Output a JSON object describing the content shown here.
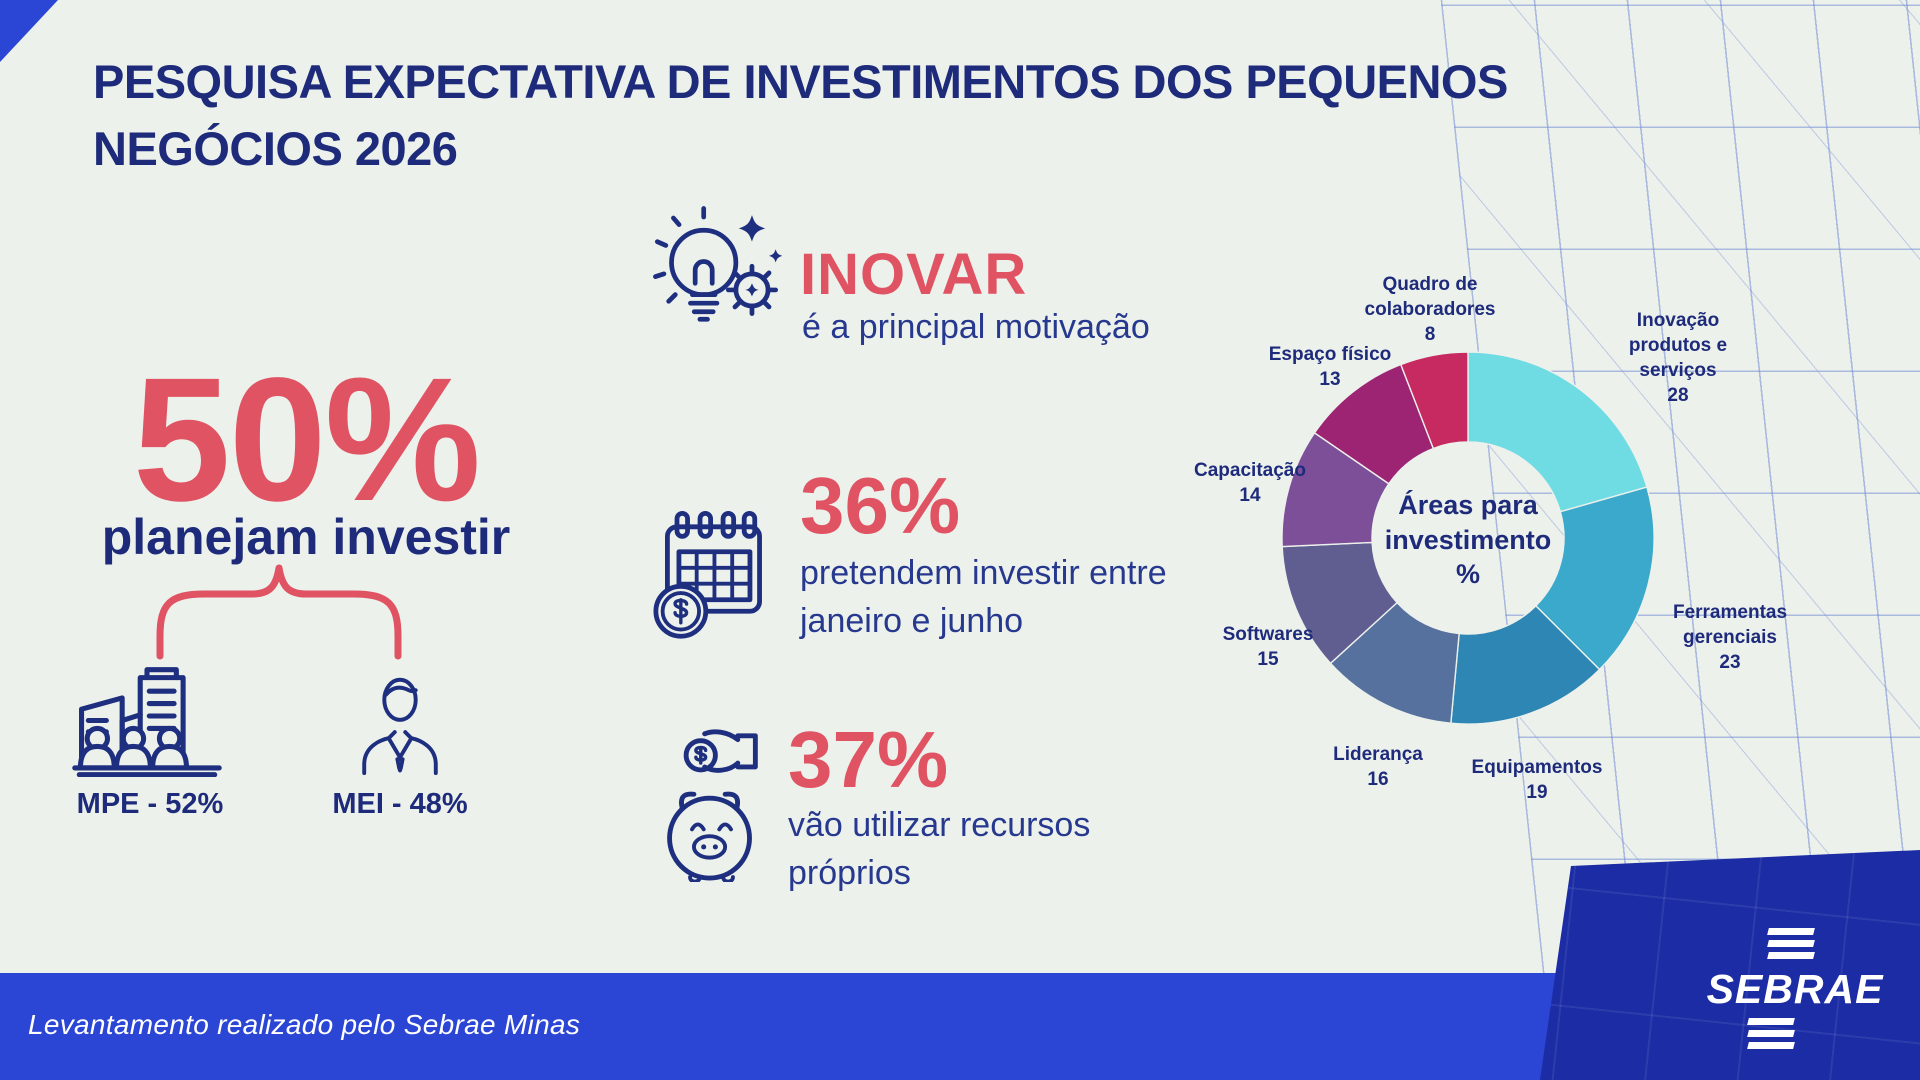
{
  "title_lines": [
    "PESQUISA EXPECTATIVA DE INVESTIMENTOS DOS PEQUENOS",
    "NEGÓCIOS 2026"
  ],
  "colors": {
    "background": "#EDF1EC",
    "navy": "#1E2B7B",
    "body_navy": "#27388F",
    "red": "#E05363",
    "footer_blue": "#2B45D4",
    "panel_blue": "#1B2CA4",
    "grid_line": "#7894D7"
  },
  "plan": {
    "percent": "50%",
    "label": "planejam investir",
    "split": [
      {
        "icon": "buildings-people-icon",
        "label": "MPE - 52%"
      },
      {
        "icon": "businessman-icon",
        "label": "MEI - 48%"
      }
    ]
  },
  "highlights": [
    {
      "icon": "innovation-lightbulb-gear-icon",
      "headline": "INOVAR",
      "lines": [
        "é a principal motivação"
      ]
    },
    {
      "icon": "calendar-money-icon",
      "headline": "36%",
      "lines": [
        "pretendem investir entre",
        "janeiro e junho"
      ]
    },
    {
      "icon": "piggy-bank-savings-icon",
      "headline": "37%",
      "lines": [
        "vão utilizar recursos",
        "próprios"
      ]
    }
  ],
  "chart_data": {
    "type": "pie",
    "variant": "donut",
    "title": "Áreas para investimento %",
    "center_label_lines": [
      "Áreas para",
      "investimento",
      "%"
    ],
    "unit": "%",
    "total": 136,
    "legend_position": "around",
    "segments": [
      {
        "id": "inovacao-produtos-servicos",
        "label": "Inovação produtos e serviços",
        "label_lines": [
          "Inovação",
          "produtos e",
          "serviços"
        ],
        "value": 28,
        "color": "#6FDBE3"
      },
      {
        "id": "ferramentas-gerenciais",
        "label": "Ferramentas gerenciais",
        "label_lines": [
          "Ferramentas gerenciais"
        ],
        "value": 23,
        "color": "#3AA9CC"
      },
      {
        "id": "equipamentos",
        "label": "Equipamentos",
        "label_lines": [
          "Equipamentos"
        ],
        "value": 19,
        "color": "#2E86B5"
      },
      {
        "id": "lideranca",
        "label": "Liderança",
        "label_lines": [
          "Liderança"
        ],
        "value": 16,
        "color": "#56719E"
      },
      {
        "id": "softwares",
        "label": "Softwares",
        "label_lines": [
          "Softwares"
        ],
        "value": 15,
        "color": "#605D90"
      },
      {
        "id": "capacitacao",
        "label": "Capacitação",
        "label_lines": [
          "Capacitação"
        ],
        "value": 14,
        "color": "#7D4F98"
      },
      {
        "id": "espaco-fisico",
        "label": "Espaço físico",
        "label_lines": [
          "Espaço físico"
        ],
        "value": 13,
        "color": "#9C2473"
      },
      {
        "id": "quadro-colaboradores",
        "label": "Quadro de colaboradores",
        "label_lines": [
          "Quadro de",
          "colaboradores"
        ],
        "value": 8,
        "color": "#C62A60"
      }
    ]
  },
  "footer": {
    "text": "Levantamento realizado pelo Sebrae Minas",
    "logo_text": "SEBRAE"
  }
}
